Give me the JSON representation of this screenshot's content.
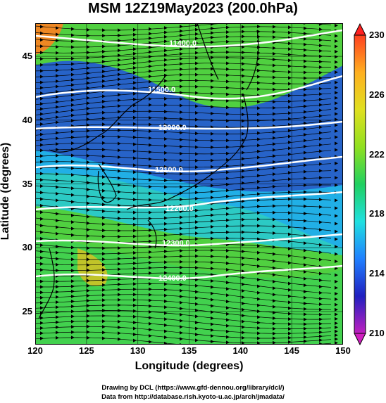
{
  "title": "MSM 12Z19May2023 (200.0hPa)",
  "xlabel": "Longitude (degrees)",
  "ylabel": "Latitude  (degrees)",
  "x_ticks": [
    "120",
    "125",
    "130",
    "135",
    "140",
    "145",
    "150"
  ],
  "y_ticks": [
    "25",
    "30",
    "35",
    "40",
    "45"
  ],
  "colorbar": {
    "labels": [
      "230",
      "226",
      "222",
      "218",
      "214",
      "210"
    ],
    "min": 210,
    "max": 230,
    "colors": [
      "#c020c0",
      "#2020c0",
      "#2080ff",
      "#20e0e0",
      "#20d060",
      "#90e020",
      "#e0e020",
      "#ffb020",
      "#ff4020"
    ]
  },
  "contours": [
    {
      "label": "11400.0"
    },
    {
      "label": "11500.0"
    },
    {
      "label": "12000.0"
    },
    {
      "label": "12100.0"
    },
    {
      "label": "12200.0"
    },
    {
      "label": "12300.0"
    },
    {
      "label": "12400.0"
    }
  ],
  "footer": {
    "line1": "Drawing by DCL (https://www.gfd-dennou.org/library/dcl/)",
    "line2": "Data from http://database.rish.kyoto-u.ac.jp/arch/jmadata/"
  },
  "chart_data": {
    "type": "heatmap",
    "title": "MSM 12Z19May2023 (200.0hPa)",
    "xlabel": "Longitude (degrees)",
    "ylabel": "Latitude  (degrees)",
    "xlim": [
      120,
      150
    ],
    "ylim": [
      22.4,
      47.6
    ],
    "x_ticks": [
      120,
      125,
      130,
      135,
      140,
      145,
      150
    ],
    "y_ticks": [
      25,
      30,
      35,
      40,
      45
    ],
    "colorbar_range": [
      210,
      230
    ],
    "contour_levels": [
      11400,
      11500,
      12000,
      12100,
      12200,
      12300,
      12400
    ]
  }
}
